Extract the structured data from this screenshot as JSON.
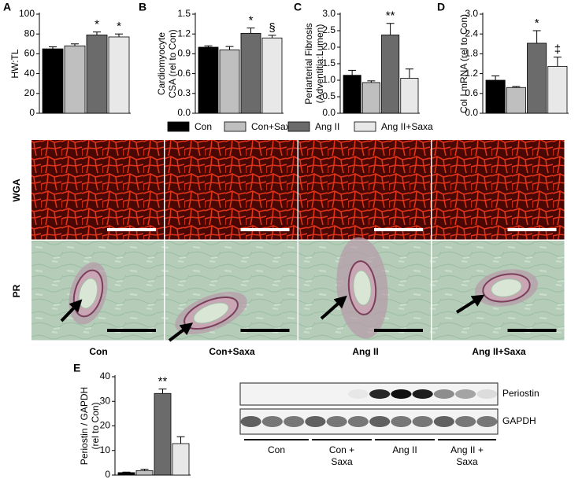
{
  "chart_data": [
    {
      "type": "bar",
      "panel": "A",
      "ylabel": [
        "HW:TL"
      ],
      "ylim": [
        0,
        100
      ],
      "yticks": [
        0,
        20,
        40,
        60,
        80,
        100
      ],
      "values": [
        65,
        68,
        79,
        77
      ],
      "errors": [
        2,
        2,
        3,
        3
      ],
      "annotations": [
        null,
        null,
        "*",
        "*"
      ]
    },
    {
      "type": "bar",
      "panel": "B",
      "ylabel": [
        "Cardiomyocyte",
        "CSA (rel to Con)"
      ],
      "ylim": [
        0,
        1.5
      ],
      "yticks": [
        {
          "value": 0,
          "label": "0.0"
        },
        0.3,
        0.6,
        0.9,
        1.2,
        1.5
      ],
      "values": [
        1.0,
        0.96,
        1.21,
        1.14
      ],
      "errors": [
        0.02,
        0.05,
        0.08,
        0.04
      ],
      "annotations": [
        null,
        null,
        "*",
        "§"
      ]
    },
    {
      "type": "bar",
      "panel": "C",
      "ylabel": [
        "Periarterial Fibrosis",
        "(Adventitia:Lumen)"
      ],
      "ylim": [
        0,
        3
      ],
      "yticks": [
        {
          "value": 0,
          "label": "0.0"
        },
        0.5,
        {
          "value": 1,
          "label": "1.0"
        },
        1.5,
        {
          "value": 2,
          "label": "2.0"
        },
        2.5,
        {
          "value": 3,
          "label": "3.0"
        }
      ],
      "values": [
        1.15,
        0.93,
        2.37,
        1.06
      ],
      "errors": [
        0.15,
        0.05,
        0.35,
        0.28
      ],
      "annotations": [
        null,
        null,
        "**",
        null
      ]
    },
    {
      "type": "bar",
      "panel": "D",
      "ylabel": [
        "Col I mRNA (rel to Con)"
      ],
      "ylim": [
        0,
        3
      ],
      "yticks": [
        {
          "value": 0,
          "label": "0.0"
        },
        0.6,
        1.2,
        1.8,
        2.4,
        {
          "value": 3,
          "label": "3.0"
        }
      ],
      "values": [
        1.0,
        0.78,
        2.12,
        1.42
      ],
      "errors": [
        0.13,
        0.03,
        0.38,
        0.28
      ],
      "annotations": [
        null,
        null,
        "*",
        "‡"
      ]
    },
    {
      "type": "bar",
      "panel": "E",
      "ylabel": [
        "Periostin / GAPDH",
        "(rel to Con)"
      ],
      "ylim": [
        0,
        40
      ],
      "yticks": [
        0,
        10,
        20,
        30,
        40
      ],
      "values": [
        1,
        1.8,
        33.2,
        12.8
      ],
      "errors": [
        0.2,
        0.6,
        1.8,
        2.8
      ],
      "annotations": [
        null,
        null,
        "**",
        null
      ]
    }
  ],
  "legend": {
    "items": [
      {
        "name": "Con",
        "color": "#000000"
      },
      {
        "name": "Con+Saxa",
        "color": "#bfbfbf"
      },
      {
        "name": "Ang II",
        "color": "#6b6b6b"
      },
      {
        "name": "Ang II+Saxa",
        "color": "#e8e8e8"
      }
    ]
  },
  "micrographs": {
    "rows": [
      "WGA",
      "PR"
    ],
    "columns": [
      "Con",
      "Con+Saxa",
      "Ang II",
      "Ang II+Saxa"
    ]
  },
  "blot": {
    "bands": [
      "Periostin",
      "GAPDH"
    ],
    "groups": [
      [
        "Con"
      ],
      [
        "Con +",
        "Saxa"
      ],
      [
        "Ang II"
      ],
      [
        "Ang II +",
        "Saxa"
      ]
    ]
  }
}
